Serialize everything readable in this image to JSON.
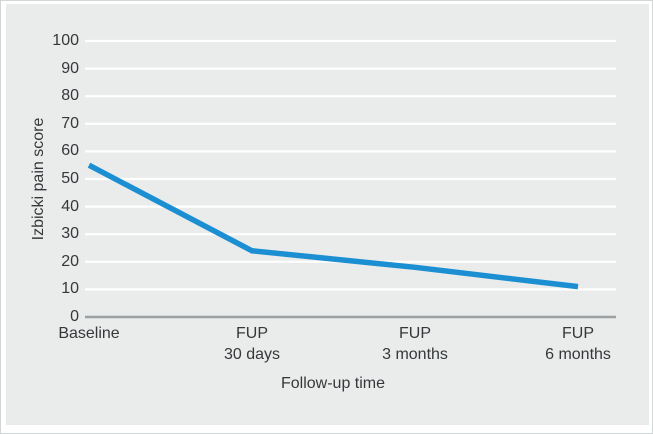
{
  "figure": {
    "panel_background": "#eaebeb",
    "outer_background": "#ffffff",
    "border_color": "#d3d6d6",
    "text_color": "#35383a"
  },
  "chart_data": {
    "type": "line",
    "title": "",
    "xlabel": "Follow-up time",
    "ylabel": "Izbicki pain score",
    "categories": [
      {
        "lines": [
          "Baseline"
        ]
      },
      {
        "lines": [
          "FUP",
          "30 days"
        ]
      },
      {
        "lines": [
          "FUP",
          "3 months"
        ]
      },
      {
        "lines": [
          "FUP",
          "6 months"
        ]
      }
    ],
    "values": [
      55,
      24,
      18,
      11
    ],
    "ylim": [
      0,
      100
    ],
    "ytick_step": 10,
    "grid": "horizontal",
    "legend": "none",
    "line_color": "#1b8fd2",
    "line_width": 5.5,
    "gridline_color": "#ffffff",
    "zero_line_color": "#9ca1a3"
  }
}
